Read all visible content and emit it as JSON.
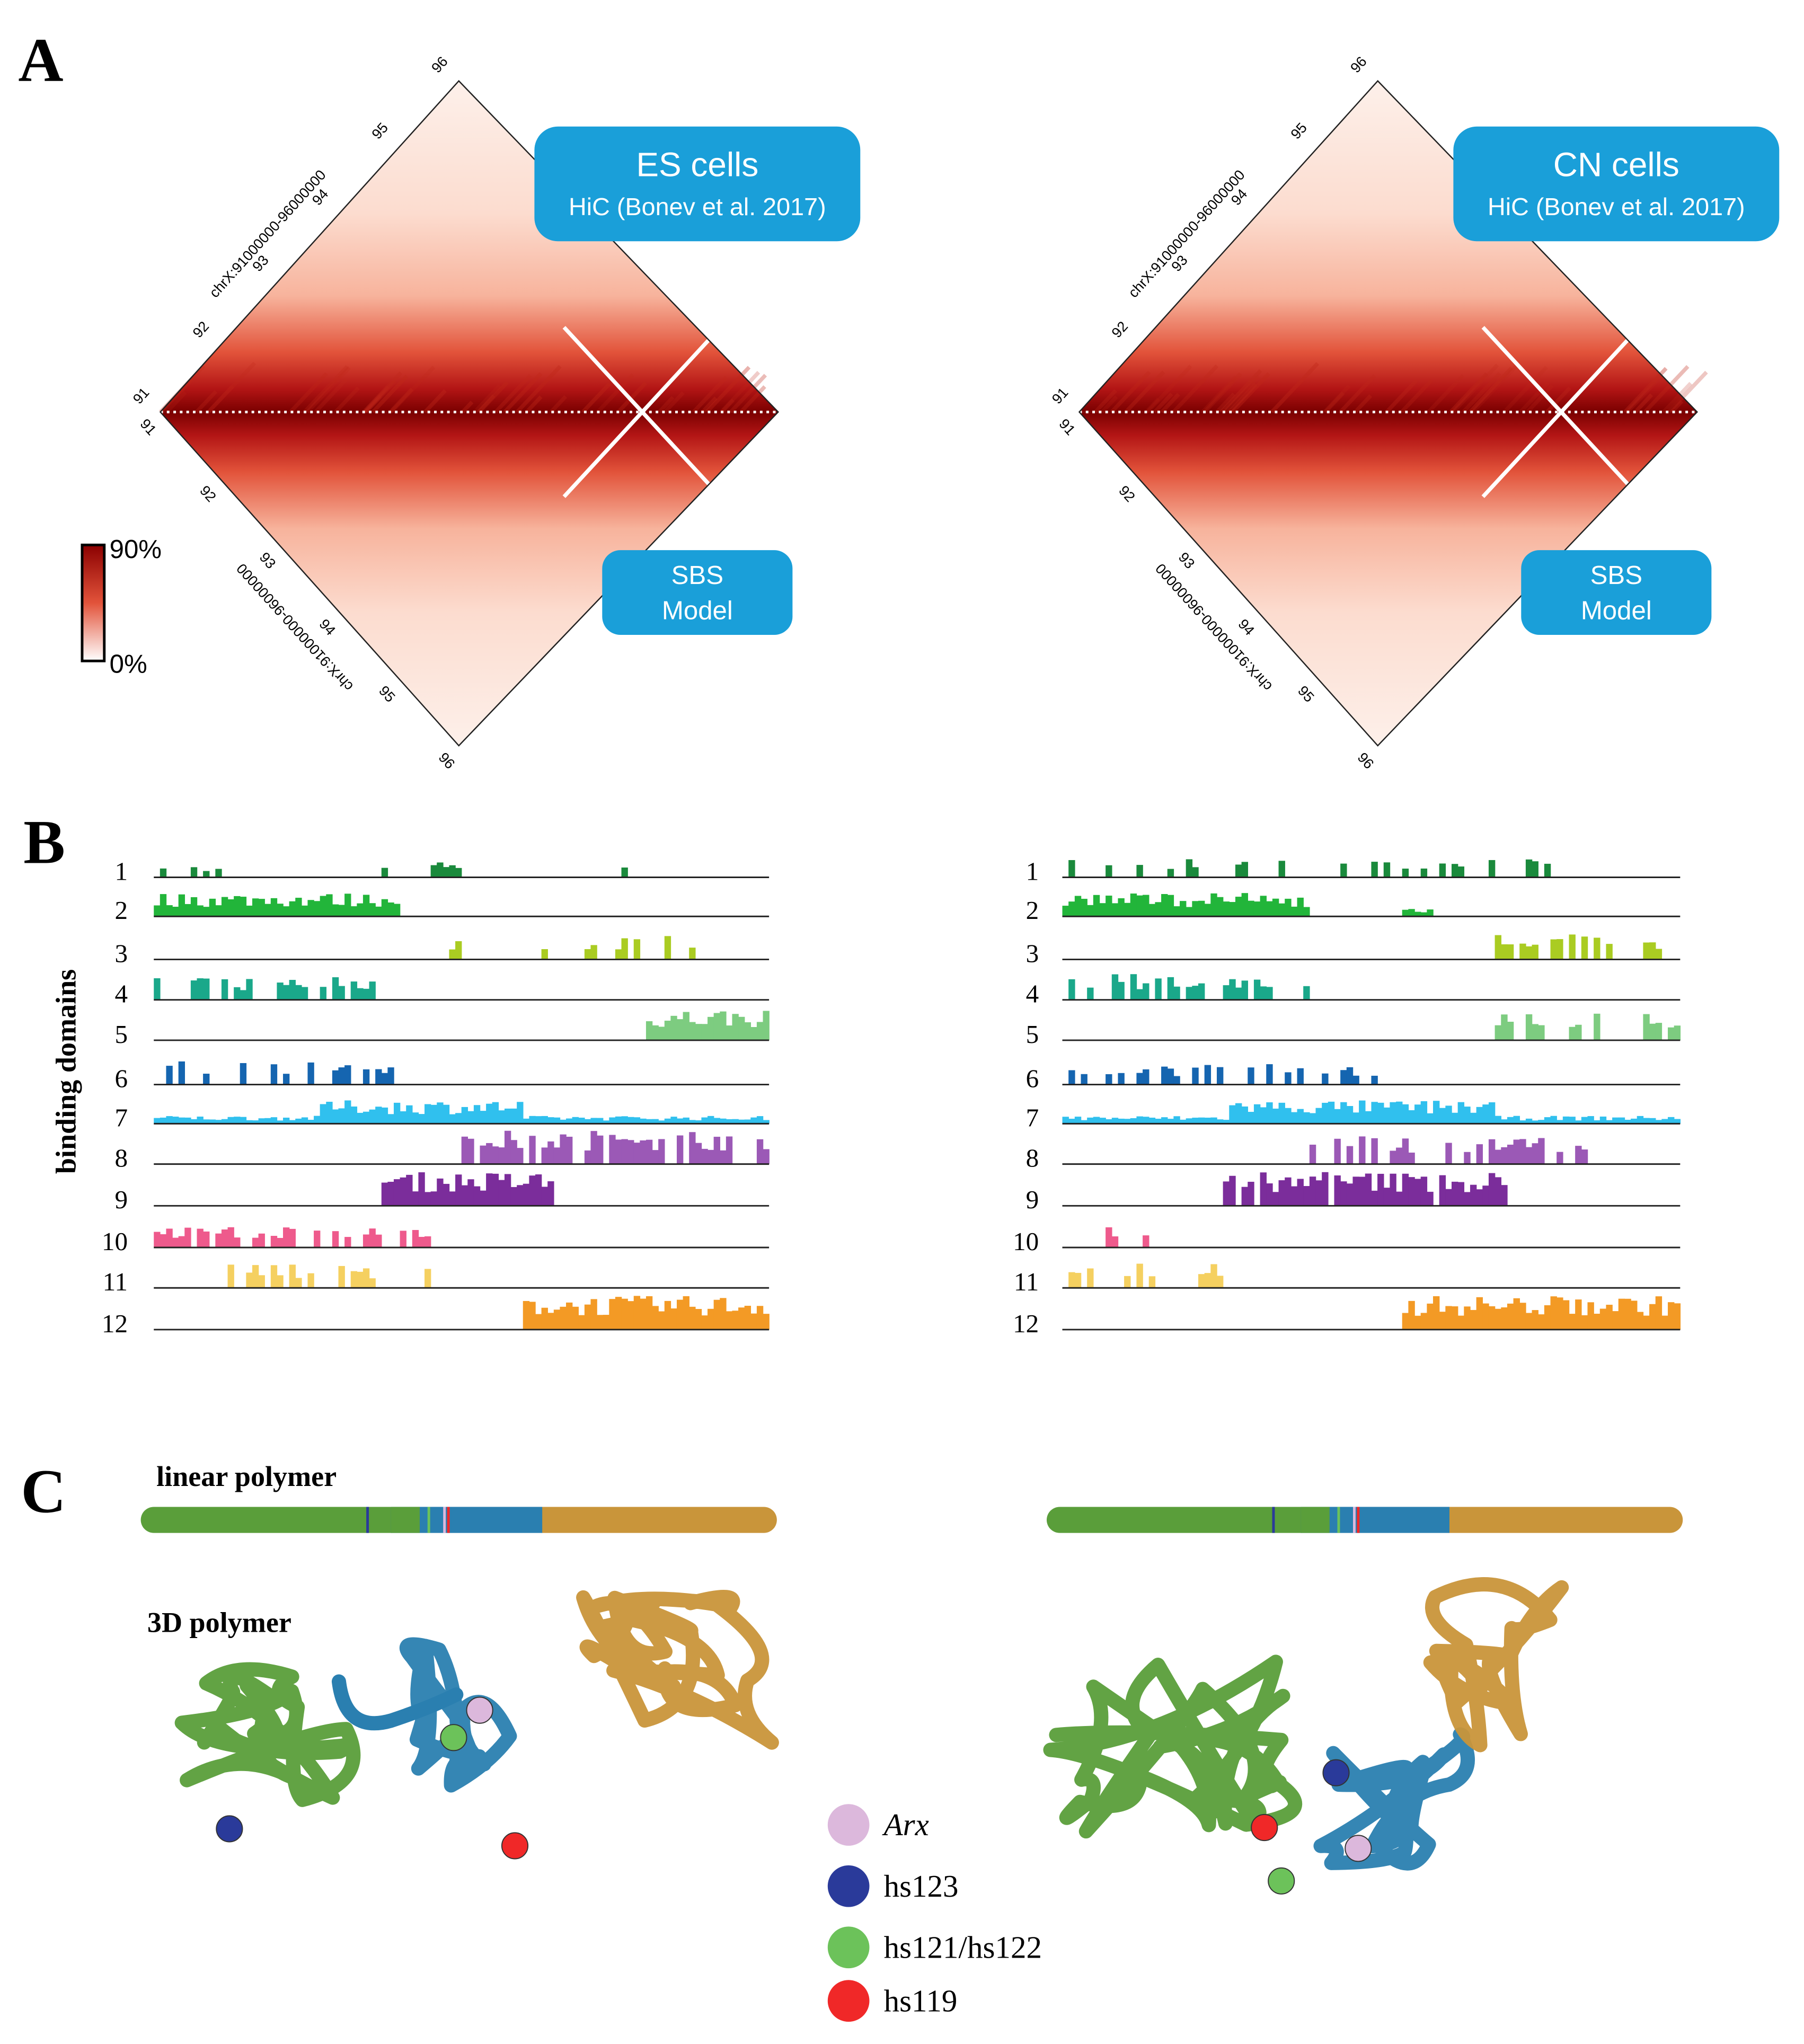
{
  "panel_a": {
    "label": "A",
    "maps": [
      {
        "title": "ES cells",
        "source": "HiC (Bonev et al. 2017)",
        "model": [
          "SBS",
          "Model"
        ]
      },
      {
        "title": "CN cells",
        "source": "HiC (Bonev et al. 2017)",
        "model": [
          "SBS",
          "Model"
        ]
      }
    ],
    "coordinate": "chrX:91000000-96000000",
    "ticks": [
      "91",
      "92",
      "93",
      "94",
      "95",
      "96"
    ],
    "colorbar": {
      "max": "90%",
      "min": "0%",
      "color": "#8b0000"
    },
    "box_color": "#1a9fd9"
  },
  "panel_b": {
    "label": "B",
    "axis_label": "binding domains",
    "domains": [
      "1",
      "2",
      "3",
      "4",
      "5",
      "6",
      "7",
      "8",
      "9",
      "10",
      "11",
      "12"
    ],
    "colors": [
      "#1a8a3c",
      "#22b53a",
      "#aacc22",
      "#1aa88a",
      "#7dcc80",
      "#1565b0",
      "#30c0ee",
      "#9b59b6",
      "#7b2d9b",
      "#ee5a8c",
      "#f5d060",
      "#f39a25"
    ]
  },
  "panel_c": {
    "label": "C",
    "linear_label": "linear polymer",
    "polymer_label": "3D polymer",
    "legend": [
      {
        "name": "Arx",
        "color": "#dcb8dc"
      },
      {
        "name": "hs123",
        "color": "#2a3a9a"
      },
      {
        "name": "hs121/hs122",
        "color": "#6cc25a"
      },
      {
        "name": "hs119",
        "color": "#f02828"
      }
    ],
    "polymer_colors": [
      "#5a9e3a",
      "#2a7fb0",
      "#c9953a"
    ]
  }
}
